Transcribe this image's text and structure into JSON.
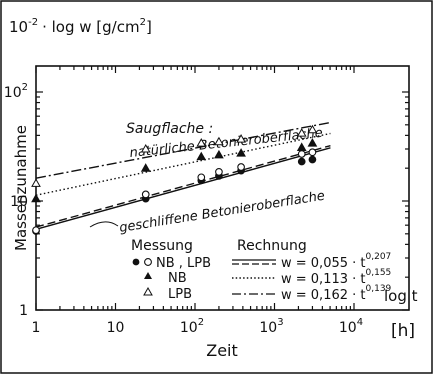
{
  "chart_data": {
    "type": "scatter",
    "title": "",
    "xlabel": "Zeit",
    "xaxis_log_label": "log t",
    "xaxis_unit": "[h]",
    "yaxis_header": "10",
    "yaxis_header_exp": "-2",
    "yaxis_header_rest": "· log w  [g/cm",
    "yaxis_header_unit_exp": "2",
    "yaxis_header_close": "]",
    "ylabel": "Massenzunahme",
    "x_scale": "log",
    "y_scale": "log",
    "xlim": [
      1,
      10000
    ],
    "ylim": [
      1,
      100
    ],
    "grid": false,
    "x_ticks": [
      {
        "value": 1,
        "base": "1",
        "exp": ""
      },
      {
        "value": 10,
        "base": "10",
        "exp": ""
      },
      {
        "value": 100,
        "base": "10",
        "exp": "2"
      },
      {
        "value": 1000,
        "base": "10",
        "exp": "3"
      },
      {
        "value": 10000,
        "base": "10",
        "exp": "4"
      }
    ],
    "y_ticks": [
      {
        "value": 1,
        "base": "1",
        "exp": ""
      },
      {
        "value": 10,
        "base": "10",
        "exp": ""
      },
      {
        "value": 100,
        "base": "10",
        "exp": "2"
      }
    ],
    "annotations": {
      "saug_line1": "Saugflache :",
      "saug_line2": "natürliche Betonieroberflache",
      "geschliffen": "geschliffene Betonieroberflache"
    },
    "legend": {
      "header_measure": "Messung",
      "header_calc": "Rechnung",
      "entries": [
        {
          "marker": "filled-circle-and-open-circle",
          "label": "NB , LPB",
          "line": "solid",
          "formula_prefix": "w = 0,055 · t",
          "formula_exp": "0,207"
        },
        {
          "marker": "filled-triangle",
          "label": "NB",
          "line": "dotted",
          "formula_prefix": "w = 0,113 · t",
          "formula_exp": "0,155"
        },
        {
          "marker": "open-triangle",
          "label": "LPB",
          "line": "dash-dot",
          "formula_prefix": "w = 0,162 · t",
          "formula_exp": "0,139"
        }
      ]
    },
    "series": [
      {
        "marker": "filled-circle",
        "points": [
          [
            1,
            5.3
          ],
          [
            24,
            10.5
          ],
          [
            120,
            15.5
          ],
          [
            200,
            17.0
          ],
          [
            380,
            19.0
          ],
          [
            2200,
            23.0
          ],
          [
            3000,
            24.0
          ]
        ]
      },
      {
        "marker": "open-circle",
        "points": [
          [
            1,
            5.4
          ],
          [
            24,
            11.5
          ],
          [
            120,
            16.5
          ],
          [
            200,
            18.5
          ],
          [
            380,
            20.5
          ],
          [
            2200,
            27.0
          ],
          [
            3000,
            28.0
          ]
        ]
      },
      {
        "marker": "filled-triangle",
        "points": [
          [
            1,
            10.5
          ],
          [
            24,
            20.0
          ],
          [
            120,
            25.5
          ],
          [
            200,
            26.5
          ],
          [
            380,
            27.5
          ],
          [
            2200,
            31.0
          ],
          [
            3000,
            34.0
          ]
        ]
      },
      {
        "marker": "open-triangle",
        "points": [
          [
            1,
            14.5
          ],
          [
            24,
            30.0
          ],
          [
            120,
            34.0
          ],
          [
            200,
            35.0
          ],
          [
            380,
            37.0
          ],
          [
            2200,
            42.0
          ],
          [
            3000,
            45.0
          ]
        ]
      }
    ],
    "fit_lines": [
      {
        "style": "solid",
        "a": 0.055,
        "b": 0.207
      },
      {
        "style": "long-dash",
        "a": 0.055,
        "b": 0.207
      },
      {
        "style": "dotted",
        "a": 0.113,
        "b": 0.155
      },
      {
        "style": "dash-dot",
        "a": 0.162,
        "b": 0.139
      }
    ]
  }
}
